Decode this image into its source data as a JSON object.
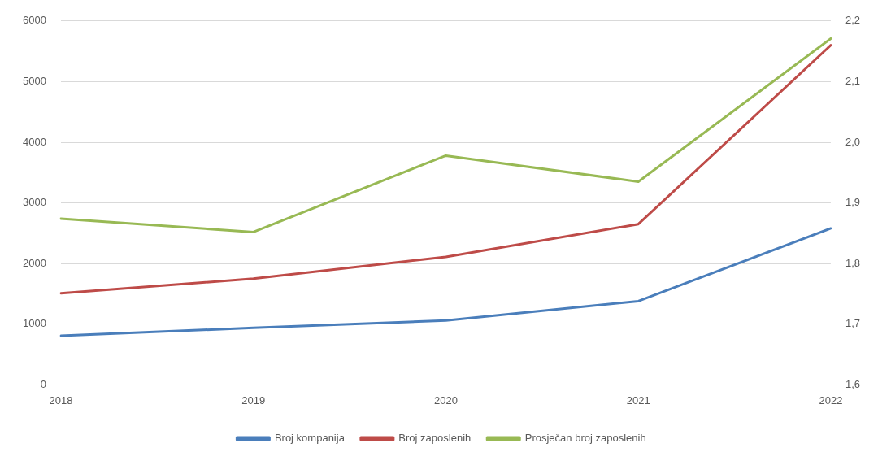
{
  "chart_data": {
    "type": "line",
    "categories": [
      "2018",
      "2019",
      "2020",
      "2021",
      "2022"
    ],
    "series": [
      {
        "name": "Broj kompanija",
        "color": "#4a7ebb",
        "values": [
          810,
          940,
          1060,
          1380,
          2580
        ]
      },
      {
        "name": "Broj zaposlenih",
        "color": "#be4b48",
        "values": [
          1510,
          1750,
          2110,
          2650,
          5600
        ]
      },
      {
        "name": "Prosječan broj zaposlenih",
        "color": "#98b954",
        "axis": "y2",
        "values": [
          1.874,
          1.852,
          1.978,
          1.935,
          2.171
        ]
      }
    ],
    "ylim": [
      0,
      6000
    ],
    "yticks": [
      0,
      1000,
      2000,
      3000,
      4000,
      5000,
      6000
    ],
    "y2lim": [
      1.6,
      2.2
    ],
    "y2ticks": [
      {
        "value": 1.6,
        "label": "1,6"
      },
      {
        "value": 1.7,
        "label": "1,7"
      },
      {
        "value": 1.8,
        "label": "1,8"
      },
      {
        "value": 1.9,
        "label": "1,9"
      },
      {
        "value": 2.0,
        "label": "2,0"
      },
      {
        "value": 2.1,
        "label": "2,1"
      },
      {
        "value": 2.2,
        "label": "2,2"
      }
    ],
    "grid": "y",
    "legend": "bottom",
    "marker": "none",
    "line_style": "solid"
  }
}
